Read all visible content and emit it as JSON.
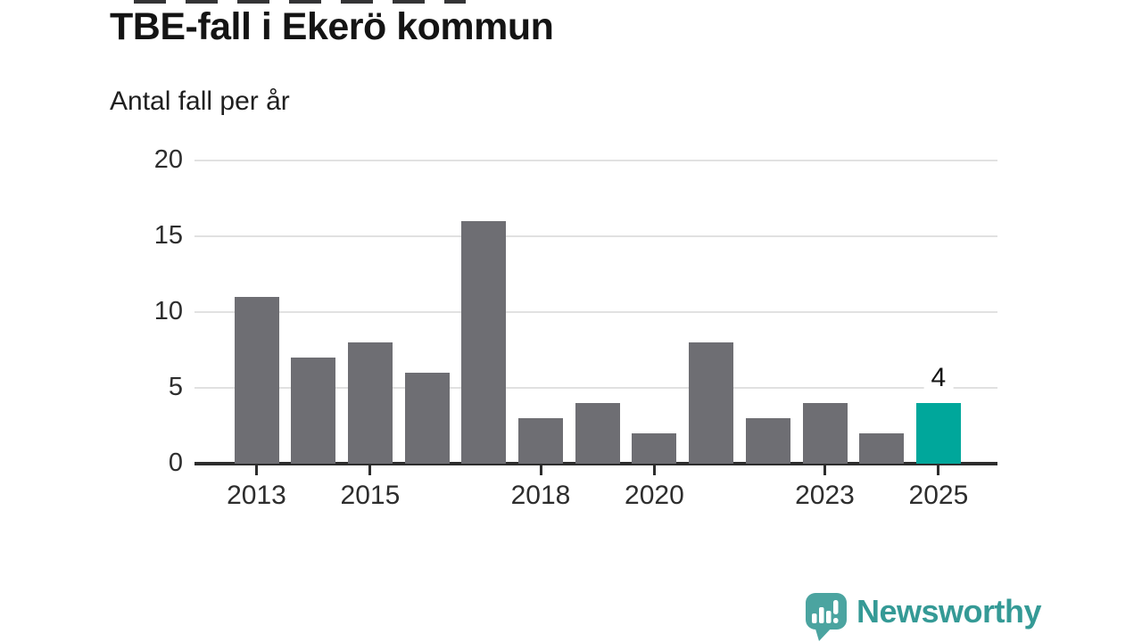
{
  "header": {
    "title": "TBE-fall i Ekerö kommun",
    "subtitle": "Antal fall per år"
  },
  "chart_data": {
    "type": "bar",
    "title": "TBE-fall i Ekerö kommun",
    "subtitle": "Antal fall per år",
    "ylabel": "Antal fall per år",
    "categories": [
      2013,
      2014,
      2015,
      2016,
      2017,
      2018,
      2019,
      2020,
      2021,
      2022,
      2023,
      2024,
      2025
    ],
    "values": [
      11,
      7,
      8,
      6,
      16,
      3,
      4,
      2,
      8,
      3,
      4,
      2,
      4
    ],
    "highlight_index": 12,
    "highlight_value_label": "4",
    "ylim": [
      0,
      20
    ],
    "yticks": [
      0,
      5,
      10,
      15,
      20
    ],
    "xtick_years": [
      2013,
      2015,
      2018,
      2020,
      2023,
      2025
    ],
    "grid": true,
    "legend_position": "none",
    "colors": {
      "bar": "#6e6e73",
      "highlight_bar": "#00a79b",
      "gridline": "#e1e1e1",
      "axis": "#2d2d2d",
      "tick_text": "#2d2d2d"
    }
  },
  "footer": {
    "brand": "Newsworthy",
    "brand_color": "#359a96",
    "icon_color": "#4ba4a0",
    "icon": "bar-chart-speech-bubble-icon"
  }
}
